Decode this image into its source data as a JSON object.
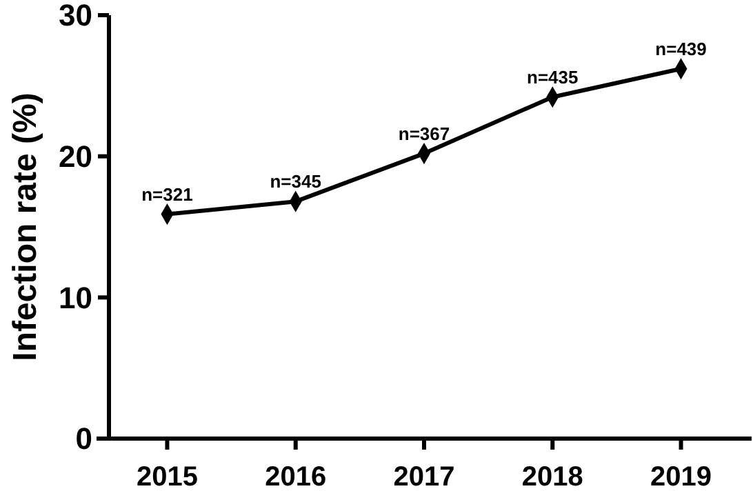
{
  "chart_data": {
    "type": "line",
    "ylabel": "Infection rate (%)",
    "categories": [
      "2015",
      "2016",
      "2017",
      "2018",
      "2019"
    ],
    "series": [
      {
        "color": "#000000",
        "values": [
          15.9,
          16.8,
          20.2,
          24.2,
          26.2
        ]
      }
    ],
    "ylim": [
      0,
      30
    ],
    "yticks": [
      0,
      10,
      20,
      30
    ],
    "marker": "diamond",
    "line_style": "solid",
    "grid": false,
    "annotations": [
      {
        "text": "n=321",
        "x": "2015",
        "y": 15.9
      },
      {
        "text": "n=345",
        "x": "2016",
        "y": 16.8
      },
      {
        "text": "n=367",
        "x": "2017",
        "y": 20.2
      },
      {
        "text": "n=435",
        "x": "2018",
        "y": 24.2
      },
      {
        "text": "n=439",
        "x": "2019",
        "y": 26.2
      }
    ]
  }
}
